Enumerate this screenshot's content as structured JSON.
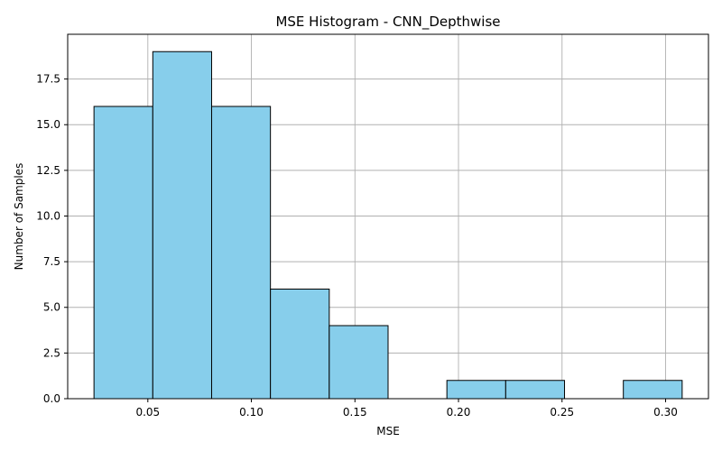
{
  "chart_data": {
    "type": "bar",
    "title": "MSE Histogram - CNN_Depthwise",
    "xlabel": "MSE",
    "ylabel": "Number of Samples",
    "bar_color": "#87ceeb",
    "edge_color": "#000000",
    "grid": true,
    "xlim": [
      0.0113,
      0.3207
    ],
    "ylim": [
      0,
      19.95
    ],
    "x_ticks": [
      0.05,
      0.1,
      0.15,
      0.2,
      0.25,
      0.3
    ],
    "x_tick_labels": [
      "0.05",
      "0.10",
      "0.15",
      "0.20",
      "0.25",
      "0.30"
    ],
    "y_ticks": [
      0.0,
      2.5,
      5.0,
      7.5,
      10.0,
      12.5,
      15.0,
      17.5
    ],
    "y_tick_labels": [
      "0.0",
      "2.5",
      "5.0",
      "7.5",
      "10.0",
      "12.5",
      "15.0",
      "17.5"
    ],
    "bins": [
      {
        "start": 0.024,
        "end": 0.0524,
        "count": 16
      },
      {
        "start": 0.0524,
        "end": 0.0808,
        "count": 19
      },
      {
        "start": 0.0808,
        "end": 0.1092,
        "count": 16
      },
      {
        "start": 0.1092,
        "end": 0.1376,
        "count": 6
      },
      {
        "start": 0.1376,
        "end": 0.166,
        "count": 4
      },
      {
        "start": 0.166,
        "end": 0.1944,
        "count": 0
      },
      {
        "start": 0.1944,
        "end": 0.2228,
        "count": 1
      },
      {
        "start": 0.2228,
        "end": 0.2512,
        "count": 1
      },
      {
        "start": 0.2512,
        "end": 0.2796,
        "count": 0
      },
      {
        "start": 0.2796,
        "end": 0.308,
        "count": 1
      }
    ]
  }
}
